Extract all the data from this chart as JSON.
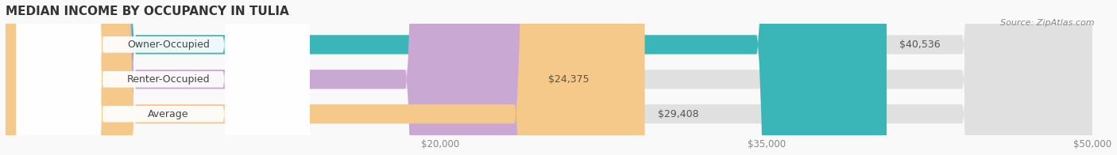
{
  "title": "MEDIAN INCOME BY OCCUPANCY IN TULIA",
  "source_text": "Source: ZipAtlas.com",
  "categories": [
    "Owner-Occupied",
    "Renter-Occupied",
    "Average"
  ],
  "values": [
    40536,
    24375,
    29408
  ],
  "bar_colors": [
    "#3ab5b8",
    "#c9a8d4",
    "#f5c98a"
  ],
  "bg_bar_color": "#e8e8e8",
  "bar_bg_color": "#ebebeb",
  "xlim": [
    0,
    50000
  ],
  "xticks": [
    20000,
    35000,
    50000
  ],
  "xtick_labels": [
    "$20,000",
    "$35,000",
    "$50,000"
  ],
  "value_labels": [
    "$40,536",
    "$24,375",
    "$29,408"
  ],
  "title_fontsize": 11,
  "label_fontsize": 9,
  "tick_fontsize": 8.5,
  "source_fontsize": 8,
  "background_color": "#f9f9f9"
}
